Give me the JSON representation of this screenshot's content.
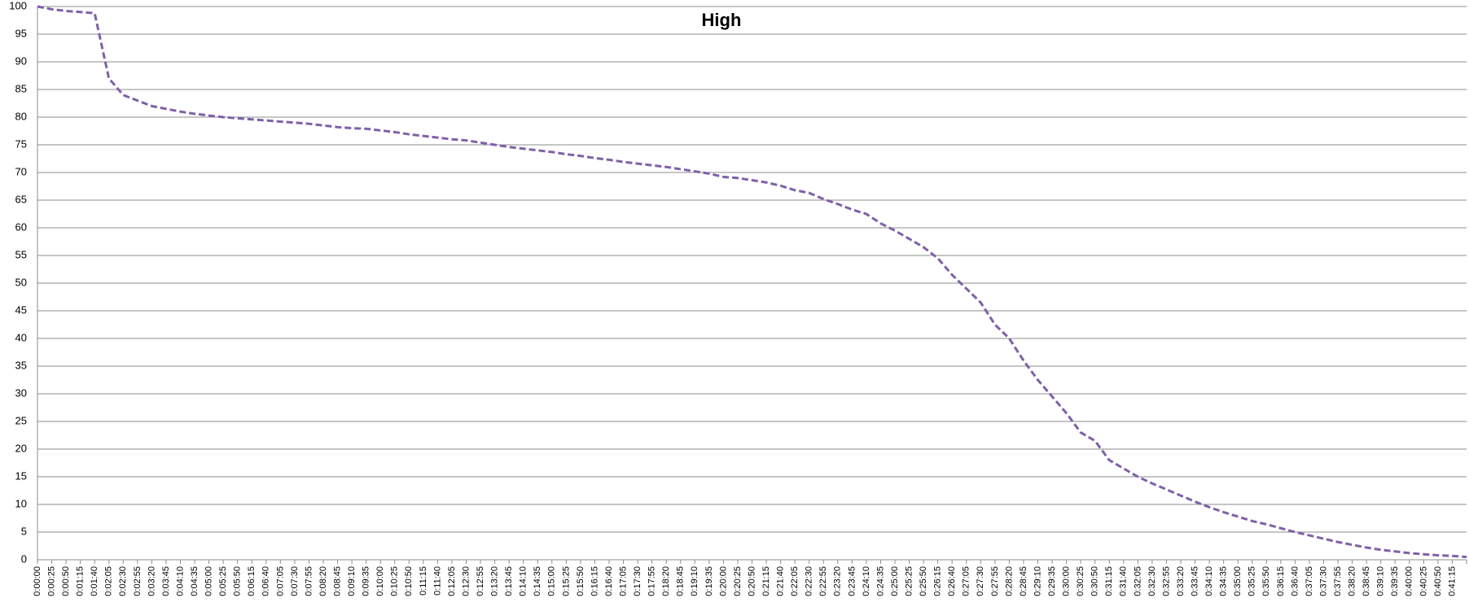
{
  "chart_data": {
    "type": "line",
    "title": "High",
    "categories": [
      "0:00:00",
      "0:00:25",
      "0:00:50",
      "0:01:15",
      "0:01:40",
      "0:02:05",
      "0:02:30",
      "0:02:55",
      "0:03:20",
      "0:03:45",
      "0:04:10",
      "0:04:35",
      "0:05:00",
      "0:05:25",
      "0:05:50",
      "0:06:15",
      "0:06:40",
      "0:07:05",
      "0:07:30",
      "0:07:55",
      "0:08:20",
      "0:08:45",
      "0:09:10",
      "0:09:35",
      "0:10:00",
      "0:10:25",
      "0:10:50",
      "0:11:15",
      "0:11:40",
      "0:12:05",
      "0:12:30",
      "0:12:55",
      "0:13:20",
      "0:13:45",
      "0:14:10",
      "0:14:35",
      "0:15:00",
      "0:15:25",
      "0:15:50",
      "0:16:15",
      "0:16:40",
      "0:17:05",
      "0:17:30",
      "0:17:55",
      "0:18:20",
      "0:18:45",
      "0:19:10",
      "0:19:35",
      "0:20:00",
      "0:20:25",
      "0:20:50",
      "0:21:15",
      "0:21:40",
      "0:22:05",
      "0:22:30",
      "0:22:55",
      "0:23:20",
      "0:23:45",
      "0:24:10",
      "0:24:35",
      "0:25:00",
      "0:25:25",
      "0:25:50",
      "0:26:15",
      "0:26:40",
      "0:27:05",
      "0:27:30",
      "0:27:55",
      "0:28:20",
      "0:28:45",
      "0:29:10",
      "0:29:35",
      "0:30:00",
      "0:30:25",
      "0:30:50",
      "0:31:15",
      "0:31:40",
      "0:32:05",
      "0:32:30",
      "0:32:55",
      "0:33:20",
      "0:33:45",
      "0:34:10",
      "0:34:35",
      "0:35:00",
      "0:35:25",
      "0:35:50",
      "0:36:15",
      "0:36:40",
      "0:37:05",
      "0:37:30",
      "0:37:55",
      "0:38:20",
      "0:38:45",
      "0:39:10",
      "0:39:35",
      "0:40:00",
      "0:40:25",
      "0:40:50",
      "0:41:15",
      null
    ],
    "values": [
      100,
      99.5,
      99.2,
      99,
      98.8,
      87,
      84,
      83,
      82,
      81.5,
      81,
      80.6,
      80.3,
      80,
      79.8,
      79.6,
      79.4,
      79.2,
      79,
      78.8,
      78.5,
      78.2,
      78,
      77.9,
      77.6,
      77.3,
      76.9,
      76.6,
      76.3,
      76,
      75.8,
      75.4,
      75,
      74.6,
      74.3,
      74,
      73.7,
      73.3,
      73,
      72.6,
      72.3,
      71.9,
      71.6,
      71.3,
      71,
      70.6,
      70.2,
      69.8,
      69.2,
      69,
      68.6,
      68.2,
      67.6,
      66.8,
      66.3,
      65.2,
      64.3,
      63.3,
      62.5,
      60.8,
      59.5,
      58,
      56.5,
      54.5,
      51.5,
      49,
      46.5,
      42.5,
      40,
      36,
      32.5,
      29.5,
      26.5,
      23,
      21.5,
      18,
      16.5,
      15,
      13.8,
      12.7,
      11.6,
      10.5,
      9.5,
      8.6,
      7.8,
      7,
      6.4,
      5.7,
      5,
      4.4,
      3.8,
      3.2,
      2.7,
      2.2,
      1.8,
      1.5,
      1.2,
      1,
      0.8,
      0.7,
      0.5
    ],
    "color": "#7f60a8",
    "line_style": "dashed",
    "ylim": [
      0,
      100
    ],
    "yticks": [
      0,
      5,
      10,
      15,
      20,
      25,
      30,
      35,
      40,
      45,
      50,
      55,
      60,
      65,
      70,
      75,
      80,
      85,
      90,
      95,
      100
    ],
    "grid": true
  }
}
